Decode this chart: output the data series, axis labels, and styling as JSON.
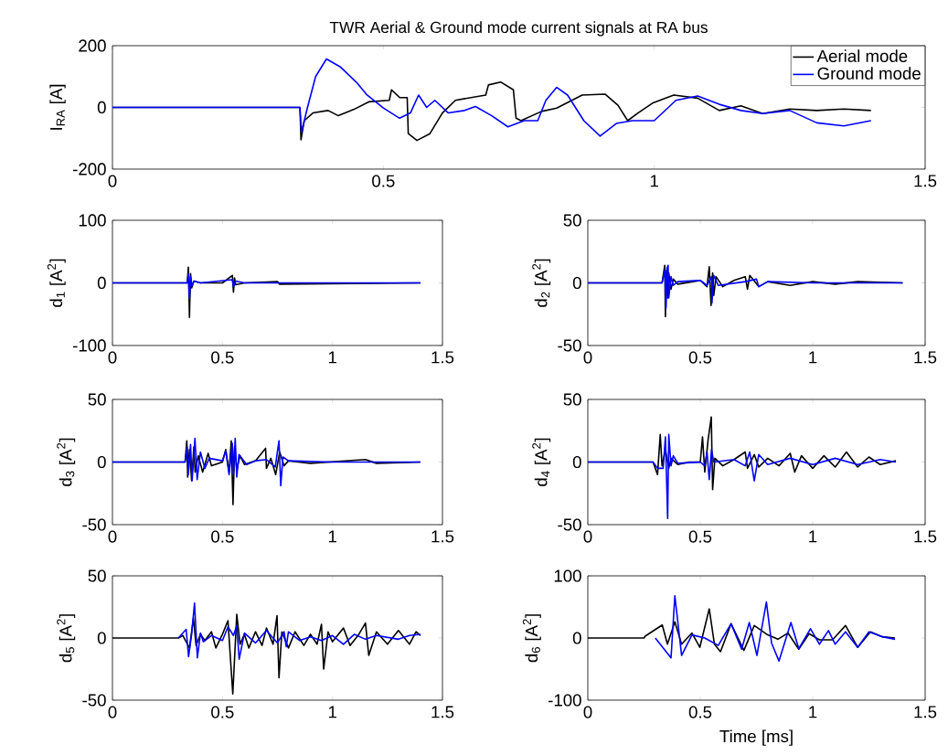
{
  "chart_data": [
    {
      "type": "line",
      "title": "TWR Aerial & Ground mode current signals at RA bus",
      "ylabel": "I$_{RA}$ [A]",
      "xlim": [
        0,
        1.5
      ],
      "ylim": [
        -200,
        200
      ],
      "xticks": [
        0,
        0.5,
        1,
        1.5
      ],
      "yticks": [
        -200,
        0,
        200
      ],
      "legend": "top right",
      "series": [
        {
          "name": "Aerial  mode",
          "color": "#000000",
          "x": [
            0,
            0.346,
            0.348,
            0.354,
            0.37,
            0.398,
            0.417,
            0.445,
            0.473,
            0.511,
            0.515,
            0.53,
            0.544,
            0.546,
            0.562,
            0.586,
            0.609,
            0.633,
            0.689,
            0.694,
            0.717,
            0.74,
            0.745,
            0.754,
            0.792,
            0.82,
            0.867,
            0.909,
            0.933,
            0.951,
            0.97,
            0.998,
            1.036,
            1.08,
            1.12,
            1.16,
            1.2,
            1.25,
            1.3,
            1.35,
            1.4
          ],
          "values": [
            0,
            0,
            -105,
            -43,
            -18,
            -10,
            -27,
            -7,
            18,
            23,
            57,
            32,
            32,
            -85,
            -107,
            -85,
            -18,
            23,
            40,
            73,
            82,
            57,
            -35,
            -43,
            -13,
            -2,
            40,
            43,
            7,
            -43,
            -18,
            15,
            40,
            30,
            -10,
            5,
            -20,
            -5,
            -10,
            -5,
            -10
          ]
        },
        {
          "name": "Ground mode",
          "color": "#0000ff",
          "x": [
            0,
            0.346,
            0.349,
            0.36,
            0.375,
            0.395,
            0.42,
            0.45,
            0.47,
            0.5,
            0.53,
            0.55,
            0.565,
            0.58,
            0.595,
            0.62,
            0.65,
            0.67,
            0.7,
            0.73,
            0.76,
            0.785,
            0.8,
            0.82,
            0.84,
            0.87,
            0.9,
            0.93,
            0.96,
            1.0,
            1.04,
            1.08,
            1.12,
            1.16,
            1.2,
            1.25,
            1.3,
            1.35,
            1.4
          ],
          "values": [
            0,
            0,
            -80,
            0,
            100,
            157,
            132,
            82,
            40,
            -2,
            -35,
            -18,
            40,
            0,
            23,
            -18,
            -10,
            3,
            -27,
            -63,
            -43,
            -43,
            23,
            65,
            40,
            -43,
            -93,
            -52,
            -43,
            -43,
            23,
            37,
            10,
            -10,
            -20,
            -10,
            -50,
            -60,
            -43
          ]
        }
      ]
    },
    {
      "type": "line",
      "ylabel": "d$_{1}$ [A$^{2}$]",
      "xlim": [
        0,
        1.5
      ],
      "ylim": [
        -100,
        100
      ],
      "xticks": [
        0,
        0.5,
        1,
        1.5
      ],
      "yticks": [
        -100,
        0,
        100
      ],
      "series": [
        {
          "color": "#000000",
          "x": [
            0,
            0.34,
            0.345,
            0.35,
            0.355,
            0.36,
            0.37,
            0.4,
            0.5,
            0.545,
            0.55,
            0.555,
            0.56,
            0.6,
            0.75,
            0.76,
            1.4
          ],
          "values": [
            0,
            0,
            25,
            -55,
            15,
            -8,
            3,
            0,
            0,
            12,
            -15,
            8,
            -3,
            0,
            2,
            -2,
            0
          ]
        },
        {
          "color": "#0000ff",
          "x": [
            0,
            0.34,
            0.345,
            0.35,
            0.355,
            0.36,
            0.37,
            0.4,
            0.545,
            0.55,
            0.56,
            0.6,
            1.4
          ],
          "values": [
            0,
            0,
            15,
            -25,
            10,
            -5,
            3,
            0,
            5,
            -6,
            3,
            0,
            0
          ]
        }
      ]
    },
    {
      "type": "line",
      "ylabel": "d$_{2}$ [A$^{2}$]",
      "xlim": [
        0,
        1.5
      ],
      "ylim": [
        -50,
        50
      ],
      "xticks": [
        0,
        0.5,
        1,
        1.5
      ],
      "yticks": [
        -50,
        0,
        50
      ],
      "series": [
        {
          "color": "#000000",
          "x": [
            0,
            0.33,
            0.342,
            0.345,
            0.35,
            0.355,
            0.36,
            0.37,
            0.38,
            0.4,
            0.5,
            0.53,
            0.54,
            0.548,
            0.555,
            0.56,
            0.57,
            0.6,
            0.65,
            0.7,
            0.71,
            0.72,
            0.76,
            0.8,
            0.9,
            1.0,
            1.1,
            1.2,
            1.4
          ],
          "values": [
            0,
            0,
            14,
            -27,
            10,
            -12,
            8,
            -5,
            3,
            -1,
            2,
            -3,
            13,
            -18,
            8,
            -10,
            5,
            -3,
            2,
            5,
            -5,
            6,
            -3,
            1,
            -2,
            1,
            -1,
            1,
            0
          ]
        },
        {
          "color": "#0000ff",
          "x": [
            0,
            0.33,
            0.343,
            0.348,
            0.352,
            0.357,
            0.36,
            0.37,
            0.38,
            0.4,
            0.5,
            0.53,
            0.55,
            0.552,
            0.56,
            0.58,
            0.7,
            0.75,
            0.76,
            0.8,
            1.0,
            1.4
          ],
          "values": [
            0,
            0,
            10,
            -20,
            12,
            14,
            -12,
            5,
            -2,
            1,
            2,
            -2,
            5,
            -16,
            6,
            -2,
            1,
            3,
            -3,
            1,
            0,
            0
          ]
        }
      ]
    },
    {
      "type": "line",
      "ylabel": "d$_{3}$ [A$^{2}$]",
      "xlim": [
        0,
        1.5
      ],
      "ylim": [
        -50,
        50
      ],
      "xticks": [
        0,
        0.5,
        1,
        1.5
      ],
      "yticks": [
        -50,
        0,
        50
      ],
      "series": [
        {
          "color": "#000000",
          "x": [
            0,
            0.33,
            0.338,
            0.342,
            0.35,
            0.36,
            0.37,
            0.376,
            0.39,
            0.41,
            0.435,
            0.45,
            0.5,
            0.515,
            0.53,
            0.54,
            0.548,
            0.555,
            0.565,
            0.58,
            0.6,
            0.65,
            0.696,
            0.7,
            0.72,
            0.742,
            0.76,
            0.78,
            0.8,
            0.9,
            1.15,
            1.2,
            1.4
          ],
          "values": [
            0,
            0,
            17,
            -12,
            10,
            -15,
            12,
            -8,
            5,
            -8,
            7,
            -3,
            0,
            10,
            -8,
            17,
            -34,
            12,
            -6,
            5,
            -2,
            1,
            11,
            -5,
            3,
            -10,
            8,
            -3,
            1,
            -1,
            2,
            -1,
            0
          ]
        },
        {
          "color": "#0000ff",
          "x": [
            0,
            0.33,
            0.34,
            0.345,
            0.355,
            0.362,
            0.375,
            0.385,
            0.4,
            0.42,
            0.44,
            0.5,
            0.515,
            0.53,
            0.545,
            0.55,
            0.558,
            0.565,
            0.575,
            0.61,
            0.65,
            0.7,
            0.74,
            0.757,
            0.765,
            0.775,
            0.8,
            1.0,
            1.4
          ],
          "values": [
            0,
            0,
            12,
            -10,
            14,
            -15,
            19,
            -14,
            8,
            -5,
            3,
            1,
            9,
            -10,
            15,
            -10,
            19,
            -12,
            6,
            -2,
            1,
            2,
            -4,
            17,
            -19,
            4,
            1,
            0,
            0
          ]
        }
      ]
    },
    {
      "type": "line",
      "ylabel": "d$_{4}$ [A$^{2}$]",
      "xlim": [
        0,
        1.5
      ],
      "ylim": [
        -50,
        50
      ],
      "xticks": [
        0,
        0.5,
        1,
        1.5
      ],
      "yticks": [
        -50,
        0,
        50
      ],
      "series": [
        {
          "color": "#000000",
          "x": [
            0,
            0.29,
            0.31,
            0.322,
            0.33,
            0.345,
            0.36,
            0.37,
            0.4,
            0.45,
            0.5,
            0.51,
            0.52,
            0.535,
            0.549,
            0.555,
            0.565,
            0.6,
            0.65,
            0.7,
            0.71,
            0.74,
            0.76,
            0.8,
            0.85,
            0.9,
            0.92,
            0.95,
            1.0,
            1.05,
            1.1,
            1.15,
            1.2,
            1.25,
            1.3,
            1.37
          ],
          "values": [
            0,
            0,
            -10,
            22,
            -3,
            10,
            -5,
            3,
            -2,
            0,
            0,
            20,
            -8,
            18,
            36,
            -22,
            3,
            -3,
            2,
            8,
            -5,
            6,
            -4,
            3,
            -3,
            7,
            -8,
            5,
            -5,
            5,
            -4,
            8,
            -4,
            4,
            -2,
            1
          ]
        },
        {
          "color": "#0000ff",
          "x": [
            0,
            0.29,
            0.31,
            0.335,
            0.345,
            0.355,
            0.36,
            0.37,
            0.38,
            0.4,
            0.5,
            0.52,
            0.53,
            0.54,
            0.55,
            0.56,
            0.65,
            0.7,
            0.72,
            0.74,
            0.76,
            0.8,
            0.9,
            1.0,
            1.1,
            1.2,
            1.3,
            1.37
          ],
          "values": [
            0,
            0,
            -5,
            -5,
            20,
            -45,
            22,
            -3,
            5,
            -1,
            0,
            -3,
            8,
            -14,
            10,
            0,
            2,
            -3,
            8,
            -15,
            6,
            -2,
            3,
            -2,
            3,
            -2,
            2,
            0
          ]
        }
      ]
    },
    {
      "type": "line",
      "ylabel": "d$_{5}$ [A$^{2}$]",
      "xlim": [
        0,
        1.5
      ],
      "ylim": [
        -50,
        50
      ],
      "xticks": [
        0,
        0.5,
        1,
        1.5
      ],
      "yticks": [
        -50,
        0,
        50
      ],
      "series": [
        {
          "color": "#000000",
          "x": [
            0,
            0.3,
            0.32,
            0.335,
            0.35,
            0.368,
            0.38,
            0.4,
            0.42,
            0.45,
            0.47,
            0.5,
            0.525,
            0.547,
            0.565,
            0.58,
            0.6,
            0.62,
            0.65,
            0.68,
            0.7,
            0.73,
            0.748,
            0.757,
            0.77,
            0.8,
            0.83,
            0.87,
            0.9,
            0.93,
            0.95,
            0.96,
            0.98,
            1.0,
            1.05,
            1.08,
            1.12,
            1.15,
            1.165,
            1.2,
            1.25,
            1.3,
            1.35,
            1.38,
            1.4
          ],
          "values": [
            0,
            0,
            2,
            -3,
            -8,
            16,
            -6,
            3,
            -2,
            5,
            -8,
            3,
            14,
            -45,
            19,
            -5,
            3,
            -8,
            5,
            -6,
            8,
            -5,
            18,
            -32,
            5,
            -8,
            5,
            -6,
            3,
            -5,
            11,
            -25,
            5,
            -3,
            8,
            -6,
            3,
            12,
            -14,
            5,
            -5,
            6,
            -5,
            5,
            2
          ]
        },
        {
          "color": "#0000ff",
          "x": [
            0.3,
            0.335,
            0.346,
            0.36,
            0.373,
            0.386,
            0.4,
            0.413,
            0.45,
            0.5,
            0.525,
            0.55,
            0.565,
            0.576,
            0.6,
            0.65,
            0.7,
            0.75,
            0.78,
            0.79,
            0.8,
            0.85,
            0.9,
            0.95,
            1.0,
            1.05,
            1.1,
            1.15,
            1.2,
            1.3,
            1.35,
            1.4
          ],
          "values": [
            0,
            7,
            -15,
            3,
            28,
            -16,
            4,
            -3,
            2,
            -2,
            9,
            2,
            10,
            -17,
            4,
            -4,
            6,
            -4,
            5,
            -7,
            5,
            -2,
            1,
            -2,
            2,
            -5,
            3,
            -1,
            2,
            -1,
            2,
            3
          ]
        }
      ]
    },
    {
      "type": "line",
      "xlabel": "Time [ms]",
      "ylabel": "d$_{6}$ [A$^{2}$]",
      "xlim": [
        0,
        1.5
      ],
      "ylim": [
        -100,
        100
      ],
      "xticks": [
        0,
        0.5,
        1,
        1.5
      ],
      "yticks": [
        -100,
        0,
        100
      ],
      "series": [
        {
          "color": "#000000",
          "x": [
            0,
            0.25,
            0.255,
            0.331,
            0.354,
            0.387,
            0.417,
            0.463,
            0.498,
            0.54,
            0.563,
            0.59,
            0.637,
            0.694,
            0.74,
            0.8,
            0.845,
            0.89,
            0.938,
            0.984,
            1.03,
            1.088,
            1.146,
            1.2,
            1.257,
            1.31,
            1.366
          ],
          "values": [
            0,
            0,
            3,
            21,
            -10,
            26,
            -10,
            8,
            -15,
            47,
            -10,
            -22,
            23,
            -20,
            20,
            5,
            -2,
            8,
            -18,
            7,
            -3,
            -3,
            20,
            -15,
            10,
            2,
            0
          ]
        },
        {
          "color": "#0000ff",
          "x": [
            0.3,
            0.37,
            0.387,
            0.417,
            0.463,
            0.52,
            0.58,
            0.637,
            0.684,
            0.718,
            0.752,
            0.794,
            0.817,
            0.85,
            0.903,
            0.938,
            0.99,
            1.03,
            1.07,
            1.1,
            1.146,
            1.2,
            1.25,
            1.31,
            1.366
          ],
          "values": [
            0,
            -32,
            68,
            -28,
            5,
            0,
            -12,
            23,
            -18,
            25,
            -28,
            58,
            -8,
            -37,
            25,
            -17,
            15,
            -10,
            12,
            -10,
            10,
            -15,
            10,
            2,
            -2
          ]
        }
      ]
    }
  ]
}
